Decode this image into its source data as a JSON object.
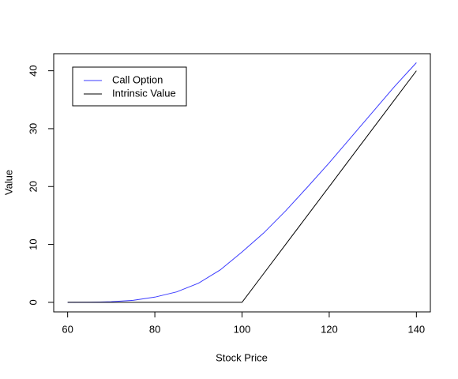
{
  "chart_data": {
    "type": "line",
    "x_label": "Stock Price",
    "y_label": "Value",
    "x": [
      60,
      65,
      70,
      75,
      80,
      85,
      90,
      95,
      100,
      105,
      110,
      115,
      120,
      125,
      130,
      135,
      140
    ],
    "series": [
      {
        "name": "Call Option",
        "color": "#3b3bff",
        "values": [
          0.0,
          0.02,
          0.1,
          0.35,
          0.9,
          1.8,
          3.3,
          5.6,
          8.7,
          12.0,
          15.8,
          19.9,
          24.1,
          28.5,
          32.9,
          37.3,
          41.4
        ]
      },
      {
        "name": "Intrinsic Value",
        "color": "#000000",
        "values": [
          0,
          0,
          0,
          0,
          0,
          0,
          0,
          0,
          0,
          5,
          10,
          15,
          20,
          25,
          30,
          35,
          40
        ]
      }
    ],
    "xlim": [
      56.8,
      143.2
    ],
    "xticks": [
      60,
      80,
      100,
      120,
      140
    ],
    "ylim": [
      -1.65,
      42.95
    ],
    "yticks": [
      0,
      10,
      20,
      30,
      40
    ],
    "legend": "top-left"
  }
}
